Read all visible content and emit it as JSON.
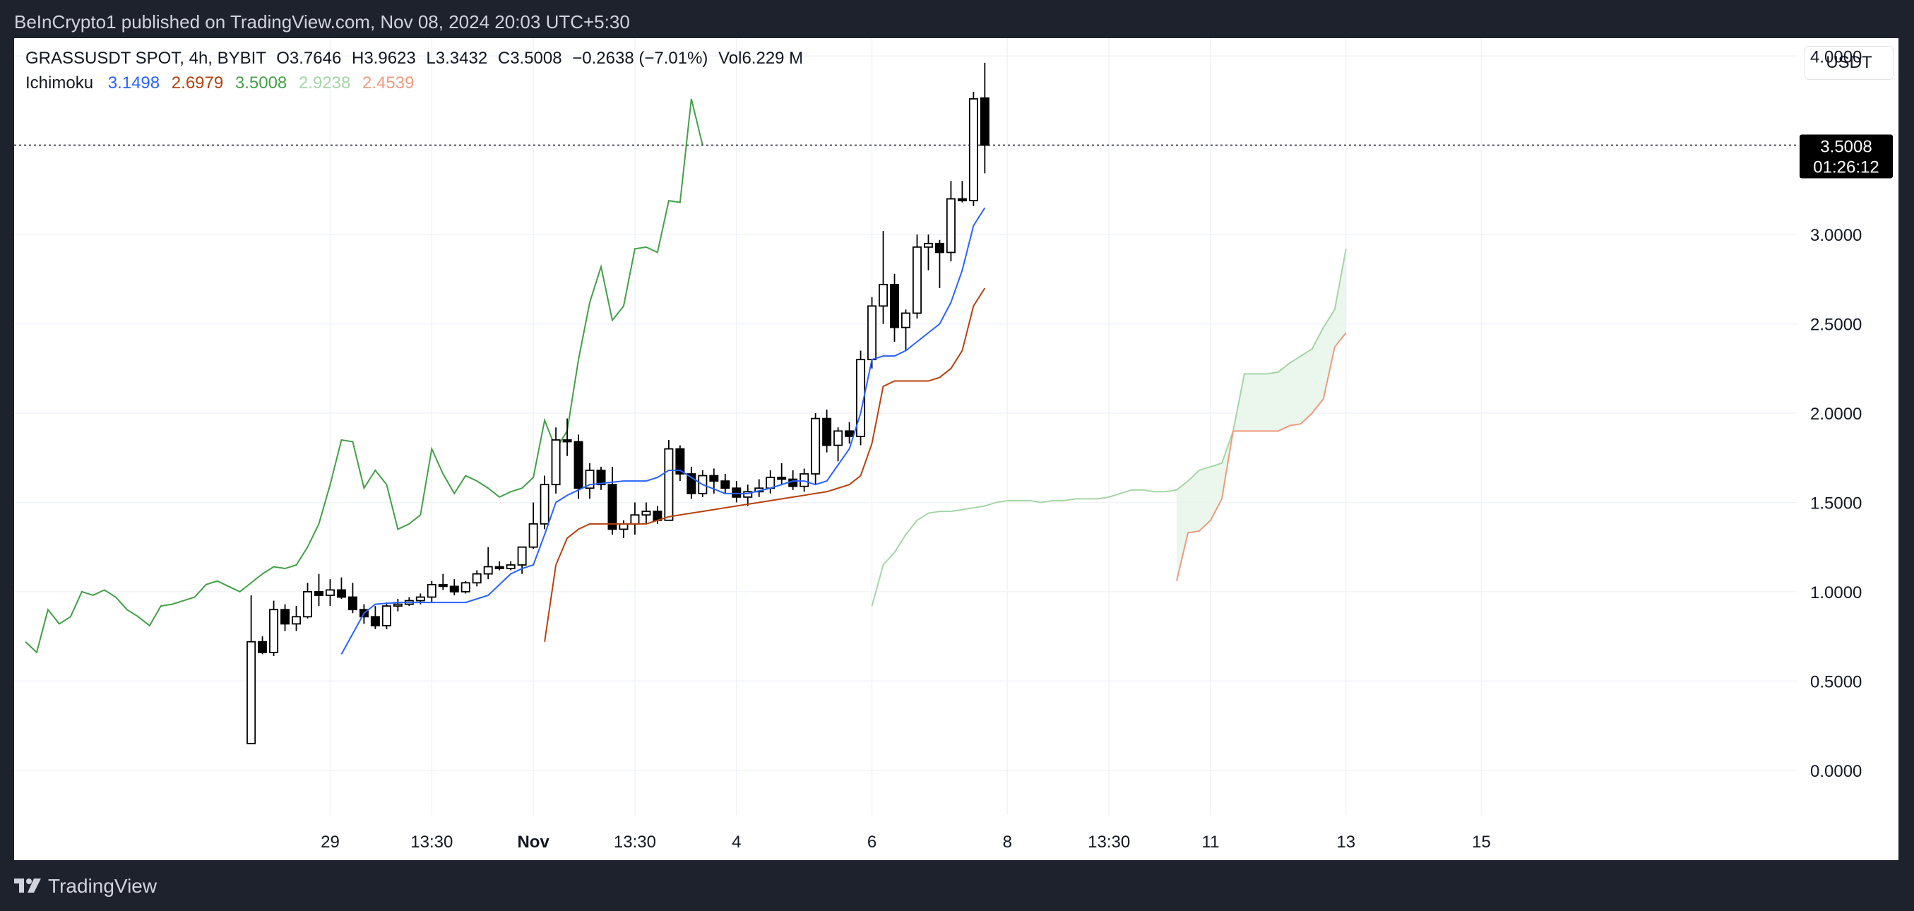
{
  "header": {
    "published_text": "BeInCrypto1 published on TradingView.com, Nov 08, 2024 20:03 UTC+5:30"
  },
  "legend": {
    "symbol": "GRASSUSDT SPOT, 4h, BYBIT",
    "open_label": "O",
    "open": "3.7646",
    "high_label": "H",
    "high": "3.9623",
    "low_label": "L",
    "low": "3.3432",
    "close_label": "C",
    "close": "3.5008",
    "change": "−0.2638 (−7.01%)",
    "vol_label": "Vol",
    "vol": "6.229 M",
    "indicator_name": "Ichimoku",
    "ichimoku_values": [
      "3.1498",
      "2.6979",
      "3.5008",
      "2.9238",
      "2.4539"
    ]
  },
  "currency_button": "USDT",
  "price_tag": {
    "price": "3.5008",
    "countdown": "01:26:12"
  },
  "footer": {
    "brand": "TradingView"
  },
  "colors": {
    "conversion": "#2962ff",
    "base": "#b7410e",
    "lagging": "#43a047",
    "leading_a": "#a5d6a7",
    "leading_b": "#ef9a7e",
    "cloud": "#e8f5e9",
    "candle_up_fill": "#ffffff",
    "candle_down_fill": "#000000"
  },
  "chart_data": {
    "type": "candlestick",
    "y_axis": {
      "ylim": [
        -0.25,
        4.1
      ],
      "ticks": [
        "4.0000",
        "3.5000",
        "3.0000",
        "2.5000",
        "2.0000",
        "1.5000",
        "1.0000",
        "0.5000",
        "0.0000"
      ]
    },
    "x_axis": {
      "xlim": [
        -16,
        142
      ],
      "ticks": [
        {
          "x": 12,
          "label": "29",
          "bold": false
        },
        {
          "x": 21,
          "label": "13:30",
          "bold": false
        },
        {
          "x": 30,
          "label": "Nov",
          "bold": true
        },
        {
          "x": 39,
          "label": "13:30",
          "bold": false
        },
        {
          "x": 48,
          "label": "4",
          "bold": false
        },
        {
          "x": 60,
          "label": "6",
          "bold": false
        },
        {
          "x": 72,
          "label": "8",
          "bold": false
        },
        {
          "x": 81,
          "label": "13:30",
          "bold": false
        },
        {
          "x": 90,
          "label": "11",
          "bold": false
        },
        {
          "x": 102,
          "label": "13",
          "bold": false
        },
        {
          "x": 114,
          "label": "15",
          "bold": false
        }
      ]
    },
    "grid": true,
    "current_price": 3.5008,
    "candles": [
      {
        "x": 5,
        "o": 0.15,
        "h": 0.98,
        "l": 0.15,
        "c": 0.72
      },
      {
        "x": 6,
        "o": 0.72,
        "h": 0.75,
        "l": 0.65,
        "c": 0.66
      },
      {
        "x": 7,
        "o": 0.66,
        "h": 0.95,
        "l": 0.64,
        "c": 0.9
      },
      {
        "x": 8,
        "o": 0.9,
        "h": 0.93,
        "l": 0.78,
        "c": 0.82
      },
      {
        "x": 9,
        "o": 0.82,
        "h": 0.92,
        "l": 0.78,
        "c": 0.86
      },
      {
        "x": 10,
        "o": 0.86,
        "h": 1.05,
        "l": 0.85,
        "c": 1.0
      },
      {
        "x": 11,
        "o": 1.0,
        "h": 1.1,
        "l": 0.92,
        "c": 0.98
      },
      {
        "x": 12,
        "o": 0.98,
        "h": 1.07,
        "l": 0.92,
        "c": 1.01
      },
      {
        "x": 13,
        "o": 1.01,
        "h": 1.08,
        "l": 0.96,
        "c": 0.97
      },
      {
        "x": 14,
        "o": 0.97,
        "h": 1.05,
        "l": 0.88,
        "c": 0.9
      },
      {
        "x": 15,
        "o": 0.9,
        "h": 0.93,
        "l": 0.82,
        "c": 0.86
      },
      {
        "x": 16,
        "o": 0.86,
        "h": 0.92,
        "l": 0.79,
        "c": 0.81
      },
      {
        "x": 17,
        "o": 0.81,
        "h": 0.94,
        "l": 0.79,
        "c": 0.92
      },
      {
        "x": 18,
        "o": 0.92,
        "h": 0.96,
        "l": 0.89,
        "c": 0.93
      },
      {
        "x": 19,
        "o": 0.93,
        "h": 0.97,
        "l": 0.92,
        "c": 0.95
      },
      {
        "x": 20,
        "o": 0.95,
        "h": 0.99,
        "l": 0.93,
        "c": 0.97
      },
      {
        "x": 21,
        "o": 0.97,
        "h": 1.06,
        "l": 0.94,
        "c": 1.04
      },
      {
        "x": 22,
        "o": 1.04,
        "h": 1.1,
        "l": 1.01,
        "c": 1.03
      },
      {
        "x": 23,
        "o": 1.03,
        "h": 1.07,
        "l": 0.98,
        "c": 1.0
      },
      {
        "x": 24,
        "o": 1.0,
        "h": 1.06,
        "l": 0.99,
        "c": 1.05
      },
      {
        "x": 25,
        "o": 1.05,
        "h": 1.12,
        "l": 1.03,
        "c": 1.1
      },
      {
        "x": 26,
        "o": 1.1,
        "h": 1.25,
        "l": 1.07,
        "c": 1.14
      },
      {
        "x": 27,
        "o": 1.14,
        "h": 1.17,
        "l": 1.12,
        "c": 1.13
      },
      {
        "x": 28,
        "o": 1.13,
        "h": 1.17,
        "l": 1.12,
        "c": 1.15
      },
      {
        "x": 29,
        "o": 1.15,
        "h": 1.25,
        "l": 1.1,
        "c": 1.25
      },
      {
        "x": 30,
        "o": 1.25,
        "h": 1.5,
        "l": 1.24,
        "c": 1.38
      },
      {
        "x": 31,
        "o": 1.38,
        "h": 1.65,
        "l": 1.35,
        "c": 1.6
      },
      {
        "x": 32,
        "o": 1.6,
        "h": 1.92,
        "l": 1.55,
        "c": 1.85
      },
      {
        "x": 33,
        "o": 1.85,
        "h": 1.97,
        "l": 1.76,
        "c": 1.84
      },
      {
        "x": 34,
        "o": 1.84,
        "h": 1.88,
        "l": 1.52,
        "c": 1.58
      },
      {
        "x": 35,
        "o": 1.58,
        "h": 1.72,
        "l": 1.52,
        "c": 1.68
      },
      {
        "x": 36,
        "o": 1.68,
        "h": 1.7,
        "l": 1.57,
        "c": 1.6
      },
      {
        "x": 37,
        "o": 1.6,
        "h": 1.7,
        "l": 1.32,
        "c": 1.35
      },
      {
        "x": 38,
        "o": 1.35,
        "h": 1.4,
        "l": 1.3,
        "c": 1.38
      },
      {
        "x": 39,
        "o": 1.38,
        "h": 1.5,
        "l": 1.32,
        "c": 1.43
      },
      {
        "x": 40,
        "o": 1.43,
        "h": 1.5,
        "l": 1.38,
        "c": 1.45
      },
      {
        "x": 41,
        "o": 1.45,
        "h": 1.48,
        "l": 1.38,
        "c": 1.4
      },
      {
        "x": 42,
        "o": 1.4,
        "h": 1.85,
        "l": 1.4,
        "c": 1.8
      },
      {
        "x": 43,
        "o": 1.8,
        "h": 1.82,
        "l": 1.62,
        "c": 1.66
      },
      {
        "x": 44,
        "o": 1.66,
        "h": 1.7,
        "l": 1.52,
        "c": 1.55
      },
      {
        "x": 45,
        "o": 1.55,
        "h": 1.68,
        "l": 1.53,
        "c": 1.65
      },
      {
        "x": 46,
        "o": 1.65,
        "h": 1.69,
        "l": 1.55,
        "c": 1.62
      },
      {
        "x": 47,
        "o": 1.62,
        "h": 1.66,
        "l": 1.55,
        "c": 1.58
      },
      {
        "x": 48,
        "o": 1.58,
        "h": 1.62,
        "l": 1.5,
        "c": 1.53
      },
      {
        "x": 49,
        "o": 1.53,
        "h": 1.6,
        "l": 1.48,
        "c": 1.56
      },
      {
        "x": 50,
        "o": 1.56,
        "h": 1.63,
        "l": 1.53,
        "c": 1.58
      },
      {
        "x": 51,
        "o": 1.58,
        "h": 1.68,
        "l": 1.55,
        "c": 1.64
      },
      {
        "x": 52,
        "o": 1.64,
        "h": 1.72,
        "l": 1.6,
        "c": 1.63
      },
      {
        "x": 53,
        "o": 1.63,
        "h": 1.68,
        "l": 1.57,
        "c": 1.59
      },
      {
        "x": 54,
        "o": 1.59,
        "h": 1.69,
        "l": 1.56,
        "c": 1.66
      },
      {
        "x": 55,
        "o": 1.66,
        "h": 2.0,
        "l": 1.6,
        "c": 1.97
      },
      {
        "x": 56,
        "o": 1.97,
        "h": 2.02,
        "l": 1.78,
        "c": 1.82
      },
      {
        "x": 57,
        "o": 1.82,
        "h": 1.92,
        "l": 1.73,
        "c": 1.9
      },
      {
        "x": 58,
        "o": 1.9,
        "h": 1.95,
        "l": 1.83,
        "c": 1.87
      },
      {
        "x": 59,
        "o": 1.87,
        "h": 2.35,
        "l": 1.82,
        "c": 2.3
      },
      {
        "x": 60,
        "o": 2.3,
        "h": 2.65,
        "l": 2.25,
        "c": 2.6
      },
      {
        "x": 61,
        "o": 2.6,
        "h": 3.02,
        "l": 2.5,
        "c": 2.72
      },
      {
        "x": 62,
        "o": 2.72,
        "h": 2.78,
        "l": 2.4,
        "c": 2.48
      },
      {
        "x": 63,
        "o": 2.48,
        "h": 2.58,
        "l": 2.35,
        "c": 2.56
      },
      {
        "x": 64,
        "o": 2.56,
        "h": 3.0,
        "l": 2.53,
        "c": 2.93
      },
      {
        "x": 65,
        "o": 2.93,
        "h": 3.0,
        "l": 2.8,
        "c": 2.95
      },
      {
        "x": 66,
        "o": 2.95,
        "h": 2.97,
        "l": 2.7,
        "c": 2.9
      },
      {
        "x": 67,
        "o": 2.9,
        "h": 3.3,
        "l": 2.85,
        "c": 3.2
      },
      {
        "x": 68,
        "o": 3.2,
        "h": 3.3,
        "l": 3.18,
        "c": 3.19
      },
      {
        "x": 69,
        "o": 3.19,
        "h": 3.8,
        "l": 3.16,
        "c": 3.76
      },
      {
        "x": 70,
        "o": 3.7646,
        "h": 3.9623,
        "l": 3.3432,
        "c": 3.5008
      }
    ],
    "ichimoku": {
      "conversion": {
        "x": [
          13,
          15,
          16,
          18,
          20,
          22,
          24,
          26,
          28,
          29,
          30,
          31,
          32,
          33,
          35,
          38,
          40,
          41,
          42,
          43,
          45,
          47,
          49,
          51,
          53,
          54,
          55,
          56,
          58,
          59,
          60,
          61,
          62,
          63,
          64,
          65,
          66,
          67,
          68,
          69,
          70
        ],
        "y": [
          0.65,
          0.88,
          0.93,
          0.94,
          0.94,
          0.94,
          0.94,
          0.98,
          1.1,
          1.13,
          1.15,
          1.32,
          1.5,
          1.54,
          1.6,
          1.62,
          1.62,
          1.64,
          1.68,
          1.68,
          1.6,
          1.55,
          1.55,
          1.58,
          1.62,
          1.62,
          1.6,
          1.62,
          1.8,
          2.0,
          2.3,
          2.32,
          2.32,
          2.35,
          2.4,
          2.45,
          2.5,
          2.62,
          2.8,
          3.05,
          3.15
        ]
      },
      "base": {
        "x": [
          31,
          32,
          33,
          34,
          35,
          36,
          38,
          40,
          42,
          44,
          46,
          48,
          50,
          52,
          54,
          56,
          57,
          58,
          59,
          60,
          61,
          62,
          63,
          64,
          65,
          66,
          67,
          68,
          69,
          70
        ],
        "y": [
          0.72,
          1.15,
          1.3,
          1.35,
          1.38,
          1.38,
          1.38,
          1.38,
          1.42,
          1.44,
          1.46,
          1.48,
          1.5,
          1.52,
          1.54,
          1.56,
          1.58,
          1.6,
          1.65,
          1.83,
          2.15,
          2.18,
          2.18,
          2.18,
          2.18,
          2.2,
          2.25,
          2.35,
          2.6,
          2.7
        ]
      },
      "lagging": {
        "x": [
          -15,
          -14,
          -13,
          -12,
          -11,
          -10,
          -9,
          -8,
          -7,
          -6,
          -5,
          -4,
          -3,
          -2,
          -1,
          0,
          1,
          2,
          3,
          4,
          5,
          6,
          7,
          8,
          9,
          10,
          11,
          12,
          13,
          14,
          15,
          16,
          17,
          18,
          19,
          20,
          21,
          22,
          23,
          24,
          25,
          26,
          27,
          28,
          29,
          30,
          31,
          32,
          33,
          34,
          35,
          36,
          37,
          38,
          39,
          40,
          41,
          42,
          43,
          44,
          45,
          46,
          47,
          48
        ],
        "y": [
          0.72,
          0.66,
          0.9,
          0.82,
          0.86,
          1.0,
          0.98,
          1.01,
          0.97,
          0.9,
          0.86,
          0.81,
          0.92,
          0.93,
          0.95,
          0.97,
          1.04,
          1.06,
          1.03,
          1.0,
          1.05,
          1.1,
          1.14,
          1.13,
          1.15,
          1.25,
          1.38,
          1.6,
          1.85,
          1.84,
          1.58,
          1.68,
          1.6,
          1.35,
          1.38,
          1.43,
          1.8,
          1.66,
          1.55,
          1.65,
          1.62,
          1.58,
          1.53,
          1.56,
          1.58,
          1.64,
          1.96,
          1.8,
          1.9,
          2.3,
          2.62,
          2.82,
          2.52,
          2.6,
          2.92,
          2.93,
          2.9,
          3.19,
          3.18,
          3.76,
          3.5,
          null,
          null,
          null
        ]
      },
      "leading_a": {
        "x": [
          60,
          61,
          62,
          63,
          64,
          65,
          66,
          67,
          68,
          69,
          70,
          71,
          72,
          73,
          74,
          75,
          76,
          77,
          78,
          79,
          80,
          81,
          82,
          83,
          84,
          85,
          86,
          87,
          88,
          89,
          90,
          91,
          92,
          93,
          94,
          95,
          96,
          97,
          98,
          99,
          100,
          101,
          102
        ],
        "y": [
          0.92,
          1.15,
          1.22,
          1.32,
          1.4,
          1.44,
          1.45,
          1.45,
          1.46,
          1.47,
          1.48,
          1.5,
          1.51,
          1.51,
          1.51,
          1.5,
          1.51,
          1.51,
          1.52,
          1.52,
          1.52,
          1.53,
          1.55,
          1.57,
          1.57,
          1.56,
          1.56,
          1.57,
          1.62,
          1.68,
          1.7,
          1.72,
          1.9,
          2.22,
          2.22,
          2.22,
          2.23,
          2.28,
          2.32,
          2.36,
          2.48,
          2.58,
          2.92
        ]
      },
      "leading_b": {
        "x": [
          87,
          88,
          89,
          90,
          91,
          92,
          93,
          94,
          95,
          96,
          97,
          98,
          99,
          100,
          101,
          102
        ],
        "y": [
          1.06,
          1.33,
          1.34,
          1.4,
          1.52,
          1.9,
          1.9,
          1.9,
          1.9,
          1.9,
          1.93,
          1.94,
          2.0,
          2.08,
          2.37,
          2.45
        ]
      }
    }
  }
}
